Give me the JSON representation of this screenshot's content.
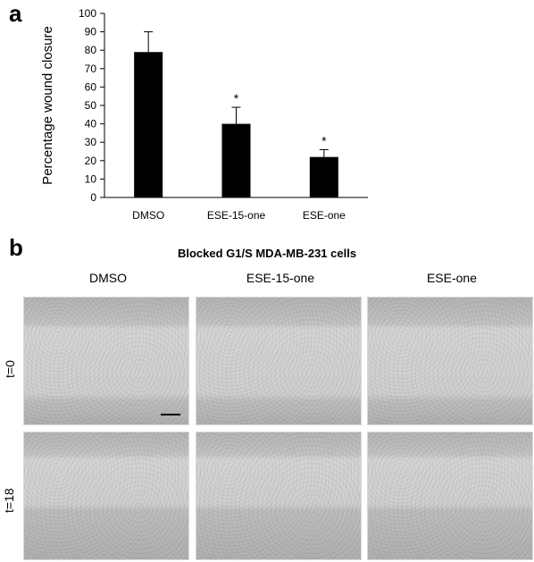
{
  "panel_a_label": "a",
  "panel_b_label": "b",
  "chart_data": {
    "type": "bar",
    "categories": [
      "DMSO",
      "ESE-15-one",
      "ESE-one"
    ],
    "values": [
      79,
      40,
      22
    ],
    "error": [
      11,
      9,
      4
    ],
    "significance": [
      "",
      "*",
      "*"
    ],
    "ylabel": "Percentage wound closure",
    "ylim": [
      0,
      100
    ],
    "yticks": [
      "0",
      "10",
      "20",
      "30",
      "40",
      "50",
      "60",
      "70",
      "80",
      "90",
      "100"
    ],
    "grid": false,
    "bar_color": "#000000"
  },
  "panel_b": {
    "title": "Blocked G1/S MDA-MB-231 cells",
    "columns": [
      "DMSO",
      "ESE-15-one",
      "ESE-one"
    ],
    "rows": [
      "t=0",
      "t=18"
    ]
  }
}
